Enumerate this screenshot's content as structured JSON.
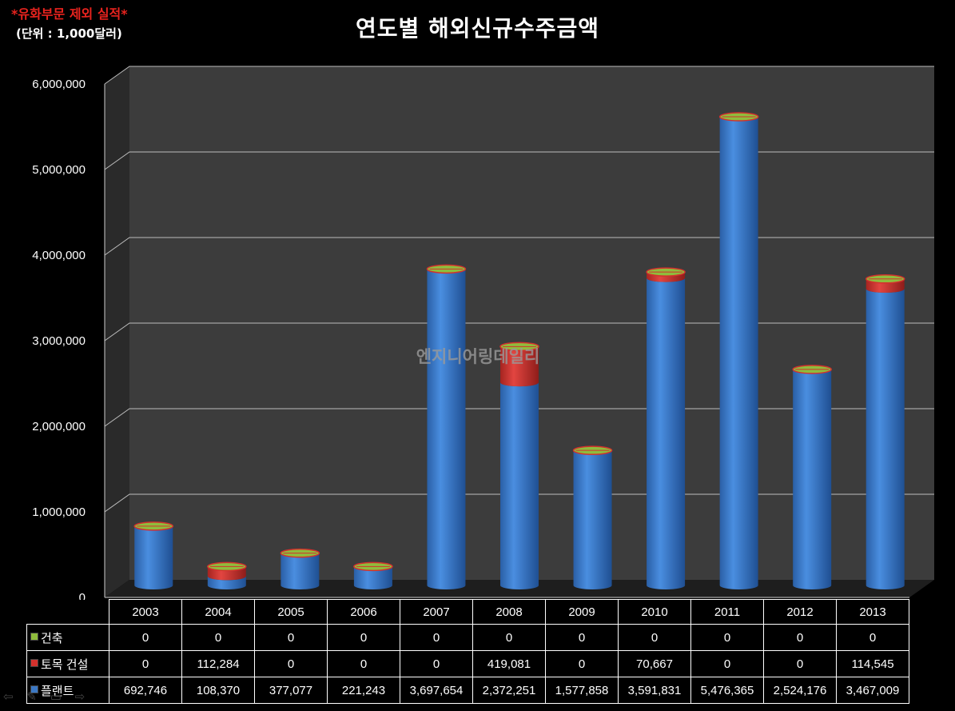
{
  "note": "*유화부문 제외 실적*",
  "unit": "(단위 : 1,000달러)",
  "title": "연도별 해외신규수주금액",
  "watermark": "엔지니어링데일리",
  "colors": {
    "background": "#000000",
    "plot_wall": "#3c3c3c",
    "side_wall": "#2a2a2a",
    "floor": "#1e1e1e",
    "건축": "#8fbc3c",
    "토목 건설": "#d3312d",
    "플랜트": "#3b78c4"
  },
  "chart_data": {
    "type": "bar",
    "stacked": true,
    "style": "3d-cylinder",
    "categories": [
      "2003",
      "2004",
      "2005",
      "2006",
      "2007",
      "2008",
      "2009",
      "2010",
      "2011",
      "2012",
      "2013"
    ],
    "ylim": [
      0,
      6000000
    ],
    "yticks": [
      "0",
      "1,000,000",
      "2,000,000",
      "3,000,000",
      "4,000,000",
      "5,000,000",
      "6,000,000"
    ],
    "grid": true,
    "legend": "data-table",
    "series": [
      {
        "name": "건축",
        "values": [
          0,
          0,
          0,
          0,
          0,
          0,
          0,
          0,
          0,
          0,
          0
        ],
        "labels": [
          "0",
          "0",
          "0",
          "0",
          "0",
          "0",
          "0",
          "0",
          "0",
          "0",
          "0"
        ]
      },
      {
        "name": "토목 건설",
        "values": [
          0,
          112284,
          0,
          0,
          0,
          419081,
          0,
          70667,
          0,
          0,
          114545
        ],
        "labels": [
          "0",
          "112,284",
          "0",
          "0",
          "0",
          "419,081",
          "0",
          "70,667",
          "0",
          "0",
          "114,545"
        ]
      },
      {
        "name": "플랜트",
        "values": [
          692746,
          108370,
          377077,
          221243,
          3697654,
          2372251,
          1577858,
          3591831,
          5476365,
          2524176,
          3467009
        ],
        "labels": [
          "692,746",
          "108,370",
          "377,077",
          "221,243",
          "3,697,654",
          "2,372,251",
          "1,577,858",
          "3,591,831",
          "5,476,365",
          "2,524,176",
          "3,467,009"
        ]
      }
    ]
  },
  "nav_icons": [
    "arrow-left-icon",
    "pencil-icon",
    "slides-icon",
    "arrow-right-icon"
  ]
}
